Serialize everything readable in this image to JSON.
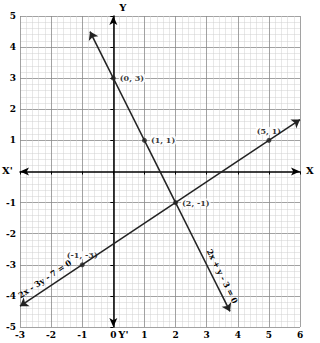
{
  "chart_data": {
    "type": "line",
    "xlim": [
      -3,
      6
    ],
    "ylim": [
      -5,
      5
    ],
    "xticks": [
      -3,
      -2,
      -1,
      0,
      1,
      2,
      3,
      4,
      5,
      6
    ],
    "yticks": [
      -5,
      -4,
      -3,
      -2,
      -1,
      1,
      2,
      3,
      4,
      5
    ],
    "grid": true,
    "axis_labels": {
      "x": "X",
      "x_negative": "X'",
      "y": "Y",
      "y_negative": "Y'"
    },
    "series": [
      {
        "name": "2x + y - 3 = 0",
        "color": "#222222",
        "x": [
          -0.75,
          0,
          1,
          2,
          3.75
        ],
        "values": [
          4.5,
          3,
          1,
          -1,
          -4.5
        ],
        "point_labels": [
          null,
          "(0, 3)",
          "(1, 1)",
          "(2, -1)",
          null
        ]
      },
      {
        "name": "2x - 3y - 7 = 0",
        "color": "#222222",
        "x": [
          -3,
          -1,
          2,
          5,
          6
        ],
        "values": [
          -4.33,
          -3,
          -1,
          1,
          1.67
        ],
        "point_labels": [
          null,
          "(-1, -3)",
          null,
          "(5, 1)",
          null
        ]
      }
    ]
  }
}
